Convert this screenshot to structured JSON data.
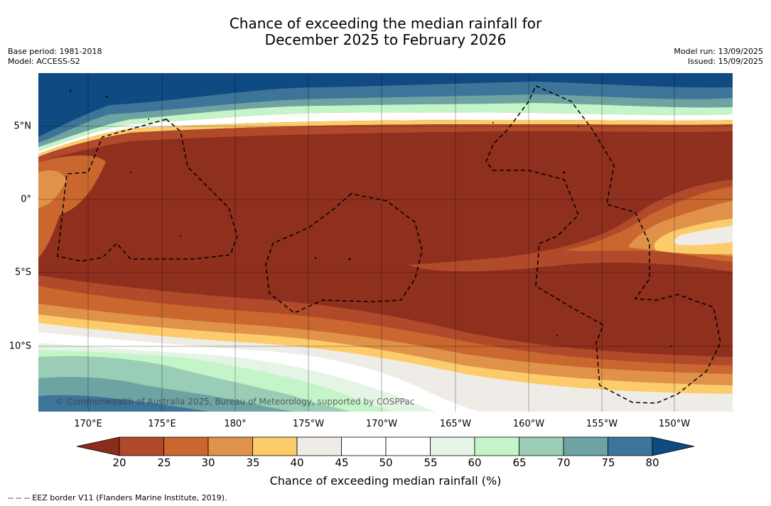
{
  "title": {
    "line1": "Chance of exceeding the median rainfall for",
    "line2": "December 2025 to February 2026"
  },
  "meta_left": {
    "base_period": "Base period: 1981-2018",
    "model": "Model: ACCESS-S2"
  },
  "meta_right": {
    "model_run": "Model run: 13/09/2025",
    "issued": "Issued: 15/09/2025"
  },
  "map": {
    "copyright": "© Commonwealth of Australia 2025, Bureau of Meteorology, supported by COSPPac",
    "lon_labels": [
      "170°E",
      "175°E",
      "180°",
      "175°W",
      "170°W",
      "165°W",
      "160°W",
      "155°W",
      "150°W"
    ],
    "lat_labels": [
      "5°N",
      "0°",
      "5°S",
      "10°S"
    ],
    "eez_color": "#000000"
  },
  "colorbar": {
    "label": "Chance of exceeding median rainfall (%)",
    "ticks": [
      "20",
      "25",
      "30",
      "35",
      "40",
      "45",
      "50",
      "55",
      "60",
      "65",
      "70",
      "75",
      "80"
    ],
    "under_color": "#8c2c1c",
    "over_color": "#0f4a82",
    "colors": [
      "#b04a2a",
      "#c9672f",
      "#e0924a",
      "#fccb6a",
      "#efebe6",
      "#ffffff",
      "#ffffff",
      "#e6f4e6",
      "#c4f5c8",
      "#9acdb5",
      "#6da3a3",
      "#3c7599"
    ]
  },
  "footnote": "--  --  -- EEZ border V11 (Flanders Marine Institute, 2019)."
}
